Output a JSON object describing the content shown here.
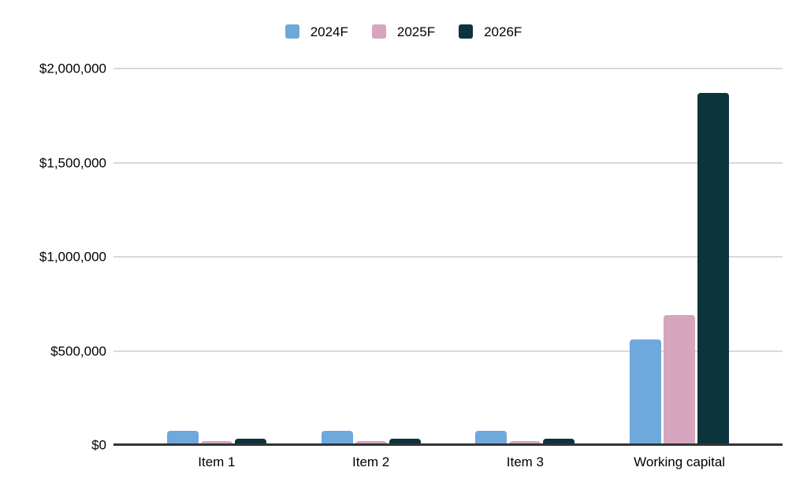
{
  "chart_data": {
    "type": "bar",
    "title": "",
    "xlabel": "",
    "ylabel": "",
    "categories": [
      "Item 1",
      "Item 2",
      "Item 3",
      "Working capital"
    ],
    "series": [
      {
        "name": "2024F",
        "color": "#6FA8DC",
        "values": [
          75000,
          75000,
          75000,
          560000
        ]
      },
      {
        "name": "2025F",
        "color": "#D5A6BD",
        "values": [
          20000,
          20000,
          20000,
          690000
        ]
      },
      {
        "name": "2026F",
        "color": "#0C343D",
        "values": [
          35000,
          35000,
          35000,
          1870000
        ]
      }
    ],
    "ylim": [
      0,
      2000000
    ],
    "yticks": [
      {
        "value": 0,
        "label": "$0"
      },
      {
        "value": 500000,
        "label": "$500,000"
      },
      {
        "value": 1000000,
        "label": "$1,000,000"
      },
      {
        "value": 1500000,
        "label": "$1,500,000"
      },
      {
        "value": 2000000,
        "label": "$2,000,000"
      }
    ],
    "legend_position": "top",
    "grid": true,
    "colors": {
      "background": "#ffffff",
      "gridline": "#d9d9d9",
      "axis": "#333333",
      "text": "#000000"
    }
  }
}
